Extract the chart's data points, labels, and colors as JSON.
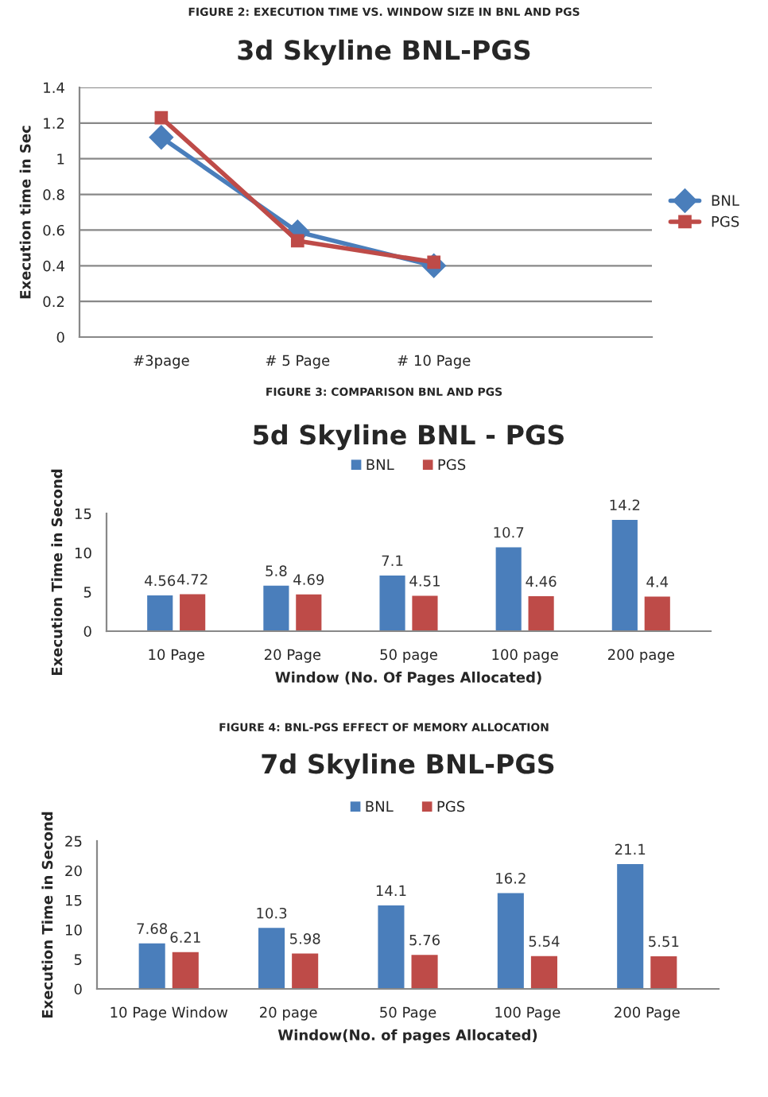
{
  "chart_data": [
    {
      "type": "line",
      "title": "3d Skyline BNL-PGS",
      "ylabel": "Execution time in Sec",
      "annotations": [
        "FIGURE 2: EXECUTION TIME VS. WINDOW SIZE IN BNL AND PGS"
      ],
      "categories": [
        "#3page",
        "# 5 Page",
        "# 10 Page",
        null
      ],
      "series": [
        {
          "name": "BNL",
          "color": "#4a7ebb",
          "marker": "diamond",
          "values": [
            1.12,
            0.59,
            0.4,
            null
          ]
        },
        {
          "name": "PGS",
          "color": "#be4b48",
          "marker": "square",
          "values": [
            1.23,
            0.54,
            0.42,
            null
          ]
        }
      ],
      "ylim": [
        0,
        1.4
      ],
      "yticks": [
        0,
        0.2,
        0.4,
        0.6,
        0.8,
        1,
        1.2,
        1.4
      ],
      "grid": "y",
      "legend": "right"
    },
    {
      "type": "bar",
      "title": "5d Skyline BNL - PGS",
      "xlabel": "Window (No. Of Pages Allocated)",
      "ylabel": "Execution Time in Second",
      "annotations": [
        "FIGURE 3: COMPARISON BNL AND PGS"
      ],
      "categories": [
        "10 Page",
        "20 Page",
        "50 page",
        "100 page",
        "200 page"
      ],
      "series": [
        {
          "name": "BNL",
          "color": "#4a7ebb",
          "values": [
            4.56,
            5.8,
            7.1,
            10.7,
            14.2
          ]
        },
        {
          "name": "PGS",
          "color": "#be4b48",
          "values": [
            4.72,
            4.69,
            4.51,
            4.46,
            4.4
          ]
        }
      ],
      "ylim": [
        0,
        15
      ],
      "yticks": [
        0,
        5,
        10,
        15
      ],
      "data_labels": true,
      "legend": "top"
    },
    {
      "type": "bar",
      "title": "7d Skyline BNL-PGS",
      "xlabel": "Window(No. of pages Allocated)",
      "ylabel": "Execution Time in Second",
      "annotations": [
        "FIGURE 4: BNL-PGS EFFECT OF MEMORY ALLOCATION"
      ],
      "categories": [
        "10 Page Window",
        "20 page",
        "50 Page",
        "100 Page",
        "200 Page"
      ],
      "series": [
        {
          "name": "BNL",
          "color": "#4a7ebb",
          "values": [
            7.68,
            10.3,
            14.1,
            16.2,
            21.1
          ]
        },
        {
          "name": "PGS",
          "color": "#be4b48",
          "values": [
            6.21,
            5.98,
            5.76,
            5.54,
            5.51
          ]
        }
      ],
      "ylim": [
        0,
        25
      ],
      "yticks": [
        0,
        5,
        10,
        15,
        20,
        25
      ],
      "data_labels": true,
      "legend": "top"
    }
  ]
}
